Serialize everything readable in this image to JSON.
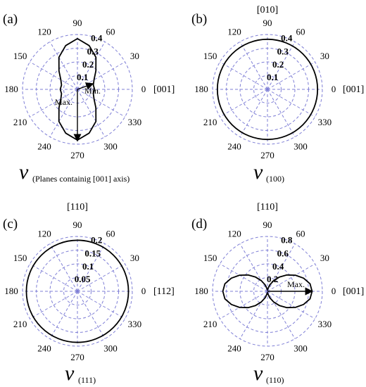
{
  "chart_data": [
    {
      "type": "polar",
      "panel_label": "(a)",
      "angle_labels": [
        "0",
        "30",
        "60",
        "90",
        "120",
        "150",
        "180",
        "210",
        "240",
        "270",
        "300",
        "330"
      ],
      "radial_ticks": [
        0.1,
        0.2,
        0.3,
        0.4
      ],
      "rmax": 0.4,
      "direction_labels": {
        "right": "[001]",
        "top": ""
      },
      "symbol": "ν",
      "subscript": "(Planes containig [001] axis)",
      "annotations": {
        "max": "Max.",
        "min": "Min."
      },
      "min_point": {
        "angle": 20,
        "r": 0.12
      },
      "max_point": {
        "angle": 270,
        "r": 0.375
      },
      "curve": [
        [
          0,
          0.125
        ],
        [
          15,
          0.12
        ],
        [
          30,
          0.14
        ],
        [
          45,
          0.19
        ],
        [
          60,
          0.27
        ],
        [
          75,
          0.33
        ],
        [
          90,
          0.37
        ],
        [
          105,
          0.33
        ],
        [
          120,
          0.27
        ],
        [
          135,
          0.19
        ],
        [
          150,
          0.14
        ],
        [
          165,
          0.12
        ],
        [
          180,
          0.125
        ],
        [
          195,
          0.12
        ],
        [
          210,
          0.14
        ],
        [
          225,
          0.19
        ],
        [
          240,
          0.27
        ],
        [
          255,
          0.33
        ],
        [
          270,
          0.37
        ],
        [
          285,
          0.33
        ],
        [
          300,
          0.27
        ],
        [
          315,
          0.19
        ],
        [
          330,
          0.14
        ],
        [
          345,
          0.12
        ]
      ]
    },
    {
      "type": "polar",
      "panel_label": "(b)",
      "angle_labels": [
        "0",
        "30",
        "60",
        "90",
        "120",
        "150",
        "180",
        "210",
        "240",
        "270",
        "300",
        "330"
      ],
      "radial_ticks": [
        0.1,
        0.2,
        0.3,
        0.4
      ],
      "rmax": 0.4,
      "direction_labels": {
        "right": "[001]",
        "top": "[010]"
      },
      "symbol": "ν",
      "subscript": "(100)",
      "curve_constant": 0.365
    },
    {
      "type": "polar",
      "panel_label": "(c)",
      "angle_labels": [
        "0",
        "30",
        "60",
        "90",
        "120",
        "150",
        "180",
        "210",
        "240",
        "270",
        "300",
        "330"
      ],
      "radial_ticks": [
        0.05,
        0.1,
        0.15,
        0.2
      ],
      "rmax": 0.2,
      "direction_labels": {
        "right": "[112]",
        "top": "[110]"
      },
      "symbol": "ν",
      "subscript": "(111)",
      "curve_constant": 0.186
    },
    {
      "type": "polar",
      "panel_label": "(d)",
      "angle_labels": [
        "0",
        "30",
        "60",
        "90",
        "120",
        "150",
        "180",
        "210",
        "240",
        "270",
        "300",
        "330"
      ],
      "radial_ticks": [
        0.2,
        0.4,
        0.6,
        0.8
      ],
      "rmax": 0.8,
      "direction_labels": {
        "right": "[001]",
        "top": "[110]"
      },
      "symbol": "ν",
      "subscript": "(110)",
      "annotations": {
        "max": "Max."
      },
      "max_point": {
        "angle": 0,
        "r": 0.65
      },
      "curve": [
        [
          0,
          0.65
        ],
        [
          10,
          0.63
        ],
        [
          20,
          0.56
        ],
        [
          30,
          0.47
        ],
        [
          40,
          0.37
        ],
        [
          50,
          0.27
        ],
        [
          60,
          0.18
        ],
        [
          70,
          0.1
        ],
        [
          80,
          0.04
        ],
        [
          90,
          0.02
        ],
        [
          100,
          0.04
        ],
        [
          110,
          0.1
        ],
        [
          120,
          0.18
        ],
        [
          130,
          0.27
        ],
        [
          140,
          0.37
        ],
        [
          150,
          0.47
        ],
        [
          160,
          0.56
        ],
        [
          170,
          0.63
        ],
        [
          180,
          0.65
        ],
        [
          190,
          0.63
        ],
        [
          200,
          0.56
        ],
        [
          210,
          0.47
        ],
        [
          220,
          0.37
        ],
        [
          230,
          0.27
        ],
        [
          240,
          0.18
        ],
        [
          250,
          0.1
        ],
        [
          260,
          0.04
        ],
        [
          270,
          0.02
        ],
        [
          280,
          0.04
        ],
        [
          290,
          0.1
        ],
        [
          300,
          0.18
        ],
        [
          310,
          0.27
        ],
        [
          320,
          0.37
        ],
        [
          330,
          0.47
        ],
        [
          340,
          0.56
        ],
        [
          350,
          0.63
        ]
      ]
    }
  ]
}
